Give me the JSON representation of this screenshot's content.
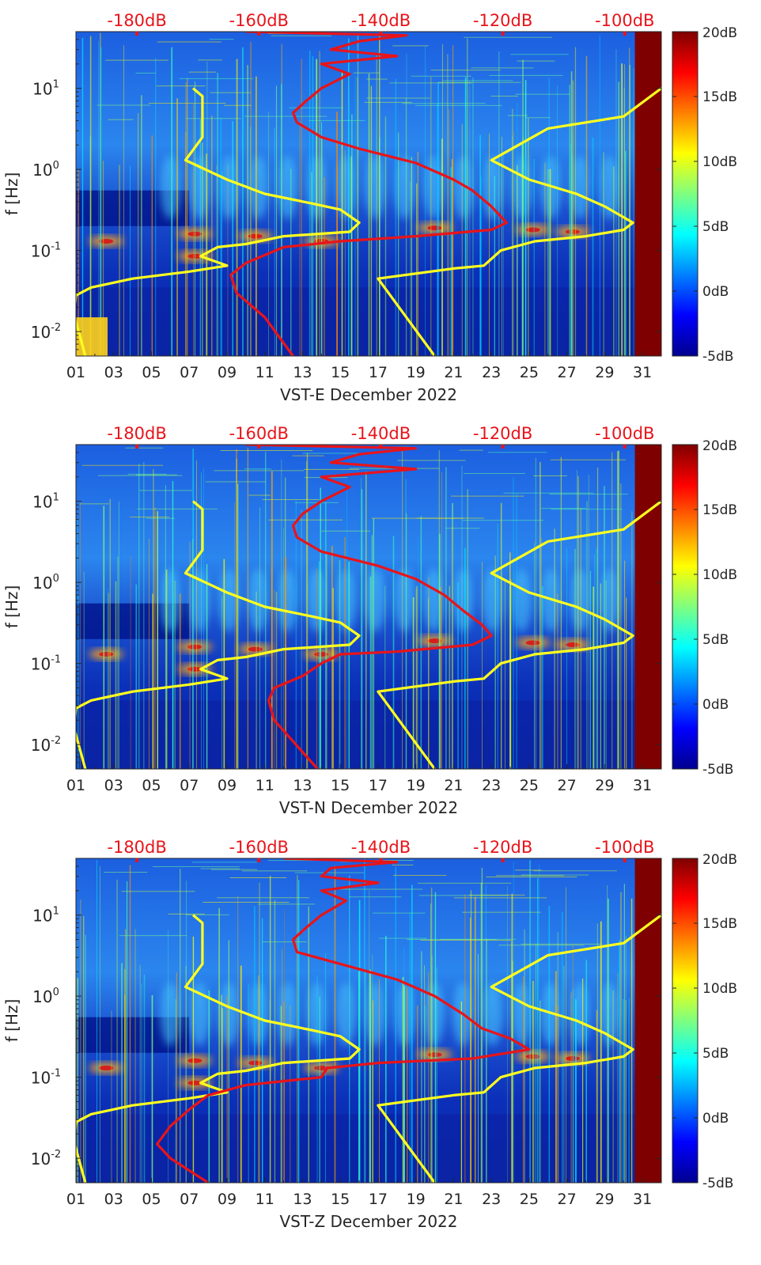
{
  "figure": {
    "colorbar": {
      "min_db": -5,
      "max_db": 20,
      "ticks": [
        {
          "value": -5,
          "label": "-5dB"
        },
        {
          "value": 0,
          "label": "0dB"
        },
        {
          "value": 5,
          "label": "5dB"
        },
        {
          "value": 10,
          "label": "10dB"
        },
        {
          "value": 15,
          "label": "15dB"
        },
        {
          "value": 20,
          "label": "20dB"
        }
      ]
    },
    "colors": {
      "noise_model_line": "#ffff1f",
      "psd_line": "#e8141a",
      "top_axis_text": "#e8141a",
      "saturated": "#7f0000"
    }
  },
  "chart_data": [
    {
      "type": "heatmap",
      "title": "",
      "xlabel": "VST-E December 2022",
      "ylabel": "f [Hz]",
      "xlim": [
        1,
        32
      ],
      "ylim_hz": [
        0.005,
        50
      ],
      "yscale": "log",
      "x_ticks": [
        {
          "value": 1,
          "label": "01"
        },
        {
          "value": 3,
          "label": "03"
        },
        {
          "value": 5,
          "label": "05"
        },
        {
          "value": 7,
          "label": "07"
        },
        {
          "value": 9,
          "label": "09"
        },
        {
          "value": 11,
          "label": "11"
        },
        {
          "value": 13,
          "label": "13"
        },
        {
          "value": 15,
          "label": "15"
        },
        {
          "value": 17,
          "label": "17"
        },
        {
          "value": 19,
          "label": "19"
        },
        {
          "value": 21,
          "label": "21"
        },
        {
          "value": 23,
          "label": "23"
        },
        {
          "value": 25,
          "label": "25"
        },
        {
          "value": 27,
          "label": "27"
        },
        {
          "value": 29,
          "label": "29"
        },
        {
          "value": 31,
          "label": "31"
        }
      ],
      "y_ticks": [
        {
          "value": 0.01,
          "base": "10",
          "exp": "-2"
        },
        {
          "value": 0.1,
          "base": "10",
          "exp": "-1"
        },
        {
          "value": 1,
          "base": "10",
          "exp": "0"
        },
        {
          "value": 10,
          "base": "10",
          "exp": "1"
        }
      ],
      "top_ticks": [
        {
          "value": -180,
          "label": "-180dB"
        },
        {
          "value": -160,
          "label": "-160dB"
        },
        {
          "value": -140,
          "label": "-140dB"
        },
        {
          "value": -120,
          "label": "-120dB"
        },
        {
          "value": -100,
          "label": "-100dB"
        }
      ],
      "top_axis_range_db": [
        -190,
        -94
      ],
      "colorbar_range_db": [
        -5,
        20
      ],
      "low_noise_model": {
        "name": "NLNM",
        "points": [
          [
            7.2,
            10
          ],
          [
            7.7,
            8
          ],
          [
            7.7,
            2.5
          ],
          [
            6.8,
            1.3
          ],
          [
            9,
            0.75
          ],
          [
            11,
            0.5
          ],
          [
            13.5,
            0.38
          ],
          [
            15,
            0.32
          ],
          [
            16,
            0.22
          ],
          [
            15.5,
            0.17
          ],
          [
            12,
            0.15
          ],
          [
            10,
            0.12
          ],
          [
            8.5,
            0.11
          ],
          [
            7.6,
            0.085
          ],
          [
            9,
            0.065
          ],
          [
            7,
            0.055
          ],
          [
            4,
            0.045
          ],
          [
            1.8,
            0.035
          ],
          [
            1,
            0.028
          ],
          [
            0.9,
            0.016
          ],
          [
            1.5,
            0.005
          ]
        ]
      },
      "high_noise_model": {
        "name": "NHNM",
        "points": [
          [
            32,
            10
          ],
          [
            30,
            4.5
          ],
          [
            26,
            3.2
          ],
          [
            23,
            1.3
          ],
          [
            25,
            0.75
          ],
          [
            27.5,
            0.5
          ],
          [
            29,
            0.35
          ],
          [
            30.5,
            0.22
          ],
          [
            30,
            0.18
          ],
          [
            28,
            0.15
          ],
          [
            25.3,
            0.13
          ],
          [
            23.5,
            0.1
          ],
          [
            22.6,
            0.065
          ],
          [
            21,
            0.06
          ],
          [
            17,
            0.045
          ],
          [
            20,
            0.005
          ]
        ]
      },
      "psd_profile": {
        "name": "Median PSD",
        "points": [
          [
            10,
            50
          ],
          [
            18.5,
            45
          ],
          [
            16,
            38
          ],
          [
            14.5,
            30
          ],
          [
            18,
            25
          ],
          [
            14,
            20
          ],
          [
            15.5,
            15
          ],
          [
            14,
            10
          ],
          [
            13.2,
            7
          ],
          [
            12.5,
            5
          ],
          [
            12.7,
            3.8
          ],
          [
            14,
            2.5
          ],
          [
            16,
            1.8
          ],
          [
            19,
            1.2
          ],
          [
            21,
            0.75
          ],
          [
            22,
            0.55
          ],
          [
            23,
            0.35
          ],
          [
            23.8,
            0.22
          ],
          [
            23,
            0.18
          ],
          [
            19,
            0.15
          ],
          [
            15,
            0.13
          ],
          [
            12,
            0.11
          ],
          [
            10,
            0.07
          ],
          [
            9.2,
            0.05
          ],
          [
            9.5,
            0.03
          ],
          [
            11,
            0.015
          ],
          [
            12.5,
            0.005
          ]
        ]
      }
    },
    {
      "type": "heatmap",
      "title": "",
      "xlabel": "VST-N December 2022",
      "ylabel": "f [Hz]",
      "xlim": [
        1,
        32
      ],
      "ylim_hz": [
        0.005,
        50
      ],
      "yscale": "log",
      "x_ticks": [
        {
          "value": 1,
          "label": "01"
        },
        {
          "value": 3,
          "label": "03"
        },
        {
          "value": 5,
          "label": "05"
        },
        {
          "value": 7,
          "label": "07"
        },
        {
          "value": 9,
          "label": "09"
        },
        {
          "value": 11,
          "label": "11"
        },
        {
          "value": 13,
          "label": "13"
        },
        {
          "value": 15,
          "label": "15"
        },
        {
          "value": 17,
          "label": "17"
        },
        {
          "value": 19,
          "label": "19"
        },
        {
          "value": 21,
          "label": "21"
        },
        {
          "value": 23,
          "label": "23"
        },
        {
          "value": 25,
          "label": "25"
        },
        {
          "value": 27,
          "label": "27"
        },
        {
          "value": 29,
          "label": "29"
        },
        {
          "value": 31,
          "label": "31"
        }
      ],
      "y_ticks": [
        {
          "value": 0.01,
          "base": "10",
          "exp": "-2"
        },
        {
          "value": 0.1,
          "base": "10",
          "exp": "-1"
        },
        {
          "value": 1,
          "base": "10",
          "exp": "0"
        },
        {
          "value": 10,
          "base": "10",
          "exp": "1"
        }
      ],
      "top_ticks": [
        {
          "value": -180,
          "label": "-180dB"
        },
        {
          "value": -160,
          "label": "-160dB"
        },
        {
          "value": -140,
          "label": "-140dB"
        },
        {
          "value": -120,
          "label": "-120dB"
        },
        {
          "value": -100,
          "label": "-100dB"
        }
      ],
      "top_axis_range_db": [
        -190,
        -94
      ],
      "colorbar_range_db": [
        -5,
        20
      ],
      "low_noise_model": {
        "name": "NLNM",
        "points": [
          [
            7.2,
            10
          ],
          [
            7.7,
            8
          ],
          [
            7.7,
            2.5
          ],
          [
            6.8,
            1.3
          ],
          [
            9,
            0.75
          ],
          [
            11,
            0.5
          ],
          [
            13.5,
            0.38
          ],
          [
            15,
            0.32
          ],
          [
            16,
            0.22
          ],
          [
            15.5,
            0.17
          ],
          [
            12,
            0.15
          ],
          [
            10,
            0.12
          ],
          [
            8.5,
            0.11
          ],
          [
            7.6,
            0.085
          ],
          [
            9,
            0.065
          ],
          [
            7,
            0.055
          ],
          [
            4,
            0.045
          ],
          [
            1.8,
            0.035
          ],
          [
            1,
            0.028
          ],
          [
            0.9,
            0.016
          ],
          [
            1.5,
            0.005
          ]
        ]
      },
      "high_noise_model": {
        "name": "NHNM",
        "points": [
          [
            32,
            10
          ],
          [
            30,
            4.5
          ],
          [
            26,
            3.2
          ],
          [
            23,
            1.3
          ],
          [
            25,
            0.75
          ],
          [
            27.5,
            0.5
          ],
          [
            29,
            0.35
          ],
          [
            30.5,
            0.22
          ],
          [
            30,
            0.18
          ],
          [
            28,
            0.15
          ],
          [
            25.3,
            0.13
          ],
          [
            23.5,
            0.1
          ],
          [
            22.6,
            0.065
          ],
          [
            21,
            0.06
          ],
          [
            17,
            0.045
          ],
          [
            20,
            0.005
          ]
        ]
      },
      "psd_profile": {
        "name": "Median PSD",
        "points": [
          [
            10,
            50
          ],
          [
            19,
            45
          ],
          [
            16,
            38
          ],
          [
            14.5,
            30
          ],
          [
            19,
            25
          ],
          [
            14,
            20
          ],
          [
            15.5,
            15
          ],
          [
            14,
            10
          ],
          [
            13,
            7
          ],
          [
            12.5,
            5
          ],
          [
            12.7,
            3.6
          ],
          [
            14,
            2.4
          ],
          [
            17,
            1.6
          ],
          [
            19,
            1.1
          ],
          [
            20.5,
            0.7
          ],
          [
            21.5,
            0.45
          ],
          [
            22.5,
            0.3
          ],
          [
            23,
            0.22
          ],
          [
            22,
            0.17
          ],
          [
            18,
            0.14
          ],
          [
            15,
            0.13
          ],
          [
            14,
            0.1
          ],
          [
            13,
            0.07
          ],
          [
            11.5,
            0.05
          ],
          [
            11.2,
            0.035
          ],
          [
            11.5,
            0.02
          ],
          [
            13.8,
            0.005
          ]
        ]
      }
    },
    {
      "type": "heatmap",
      "title": "",
      "xlabel": "VST-Z December 2022",
      "ylabel": "f [Hz]",
      "xlim": [
        1,
        32
      ],
      "ylim_hz": [
        0.005,
        50
      ],
      "yscale": "log",
      "x_ticks": [
        {
          "value": 1,
          "label": "01"
        },
        {
          "value": 3,
          "label": "03"
        },
        {
          "value": 5,
          "label": "05"
        },
        {
          "value": 7,
          "label": "07"
        },
        {
          "value": 9,
          "label": "09"
        },
        {
          "value": 11,
          "label": "11"
        },
        {
          "value": 13,
          "label": "13"
        },
        {
          "value": 15,
          "label": "15"
        },
        {
          "value": 17,
          "label": "17"
        },
        {
          "value": 19,
          "label": "19"
        },
        {
          "value": 21,
          "label": "21"
        },
        {
          "value": 23,
          "label": "23"
        },
        {
          "value": 25,
          "label": "25"
        },
        {
          "value": 27,
          "label": "27"
        },
        {
          "value": 29,
          "label": "29"
        },
        {
          "value": 31,
          "label": "31"
        }
      ],
      "y_ticks": [
        {
          "value": 0.01,
          "base": "10",
          "exp": "-2"
        },
        {
          "value": 0.1,
          "base": "10",
          "exp": "-1"
        },
        {
          "value": 1,
          "base": "10",
          "exp": "0"
        },
        {
          "value": 10,
          "base": "10",
          "exp": "1"
        }
      ],
      "top_ticks": [
        {
          "value": -180,
          "label": "-180dB"
        },
        {
          "value": -160,
          "label": "-160dB"
        },
        {
          "value": -140,
          "label": "-140dB"
        },
        {
          "value": -120,
          "label": "-120dB"
        },
        {
          "value": -100,
          "label": "-100dB"
        }
      ],
      "top_axis_range_db": [
        -190,
        -94
      ],
      "colorbar_range_db": [
        -5,
        20
      ],
      "low_noise_model": {
        "name": "NLNM",
        "points": [
          [
            7.2,
            10
          ],
          [
            7.7,
            8
          ],
          [
            7.7,
            2.5
          ],
          [
            6.8,
            1.3
          ],
          [
            9,
            0.75
          ],
          [
            11,
            0.5
          ],
          [
            13.5,
            0.38
          ],
          [
            15,
            0.32
          ],
          [
            16,
            0.22
          ],
          [
            15.5,
            0.17
          ],
          [
            12,
            0.15
          ],
          [
            10,
            0.12
          ],
          [
            8.5,
            0.11
          ],
          [
            7.6,
            0.085
          ],
          [
            9,
            0.065
          ],
          [
            7,
            0.055
          ],
          [
            4,
            0.045
          ],
          [
            1.8,
            0.035
          ],
          [
            1,
            0.028
          ],
          [
            0.9,
            0.016
          ],
          [
            1.5,
            0.005
          ]
        ]
      },
      "high_noise_model": {
        "name": "NHNM",
        "points": [
          [
            32,
            10
          ],
          [
            30,
            4.5
          ],
          [
            26,
            3.2
          ],
          [
            23,
            1.3
          ],
          [
            25,
            0.75
          ],
          [
            27.5,
            0.5
          ],
          [
            29,
            0.35
          ],
          [
            30.5,
            0.22
          ],
          [
            30,
            0.18
          ],
          [
            28,
            0.15
          ],
          [
            25.3,
            0.13
          ],
          [
            23.5,
            0.1
          ],
          [
            22.6,
            0.065
          ],
          [
            21,
            0.06
          ],
          [
            17,
            0.045
          ],
          [
            20,
            0.005
          ]
        ]
      },
      "psd_profile": {
        "name": "Median PSD",
        "points": [
          [
            12,
            50
          ],
          [
            18,
            45
          ],
          [
            14.5,
            38
          ],
          [
            14,
            30
          ],
          [
            17,
            25
          ],
          [
            14,
            20
          ],
          [
            15.3,
            15
          ],
          [
            14,
            10
          ],
          [
            13.2,
            7
          ],
          [
            12.5,
            5
          ],
          [
            12.7,
            3.5
          ],
          [
            15,
            2.5
          ],
          [
            18,
            1.6
          ],
          [
            20,
            1
          ],
          [
            21.5,
            0.6
          ],
          [
            22.5,
            0.4
          ],
          [
            24,
            0.3
          ],
          [
            25,
            0.22
          ],
          [
            22,
            0.17
          ],
          [
            17,
            0.15
          ],
          [
            14.3,
            0.13
          ],
          [
            14,
            0.1
          ],
          [
            10,
            0.08
          ],
          [
            8,
            0.06
          ],
          [
            7,
            0.04
          ],
          [
            6,
            0.025
          ],
          [
            5.3,
            0.015
          ],
          [
            6,
            0.01
          ],
          [
            8,
            0.005
          ]
        ]
      }
    }
  ]
}
